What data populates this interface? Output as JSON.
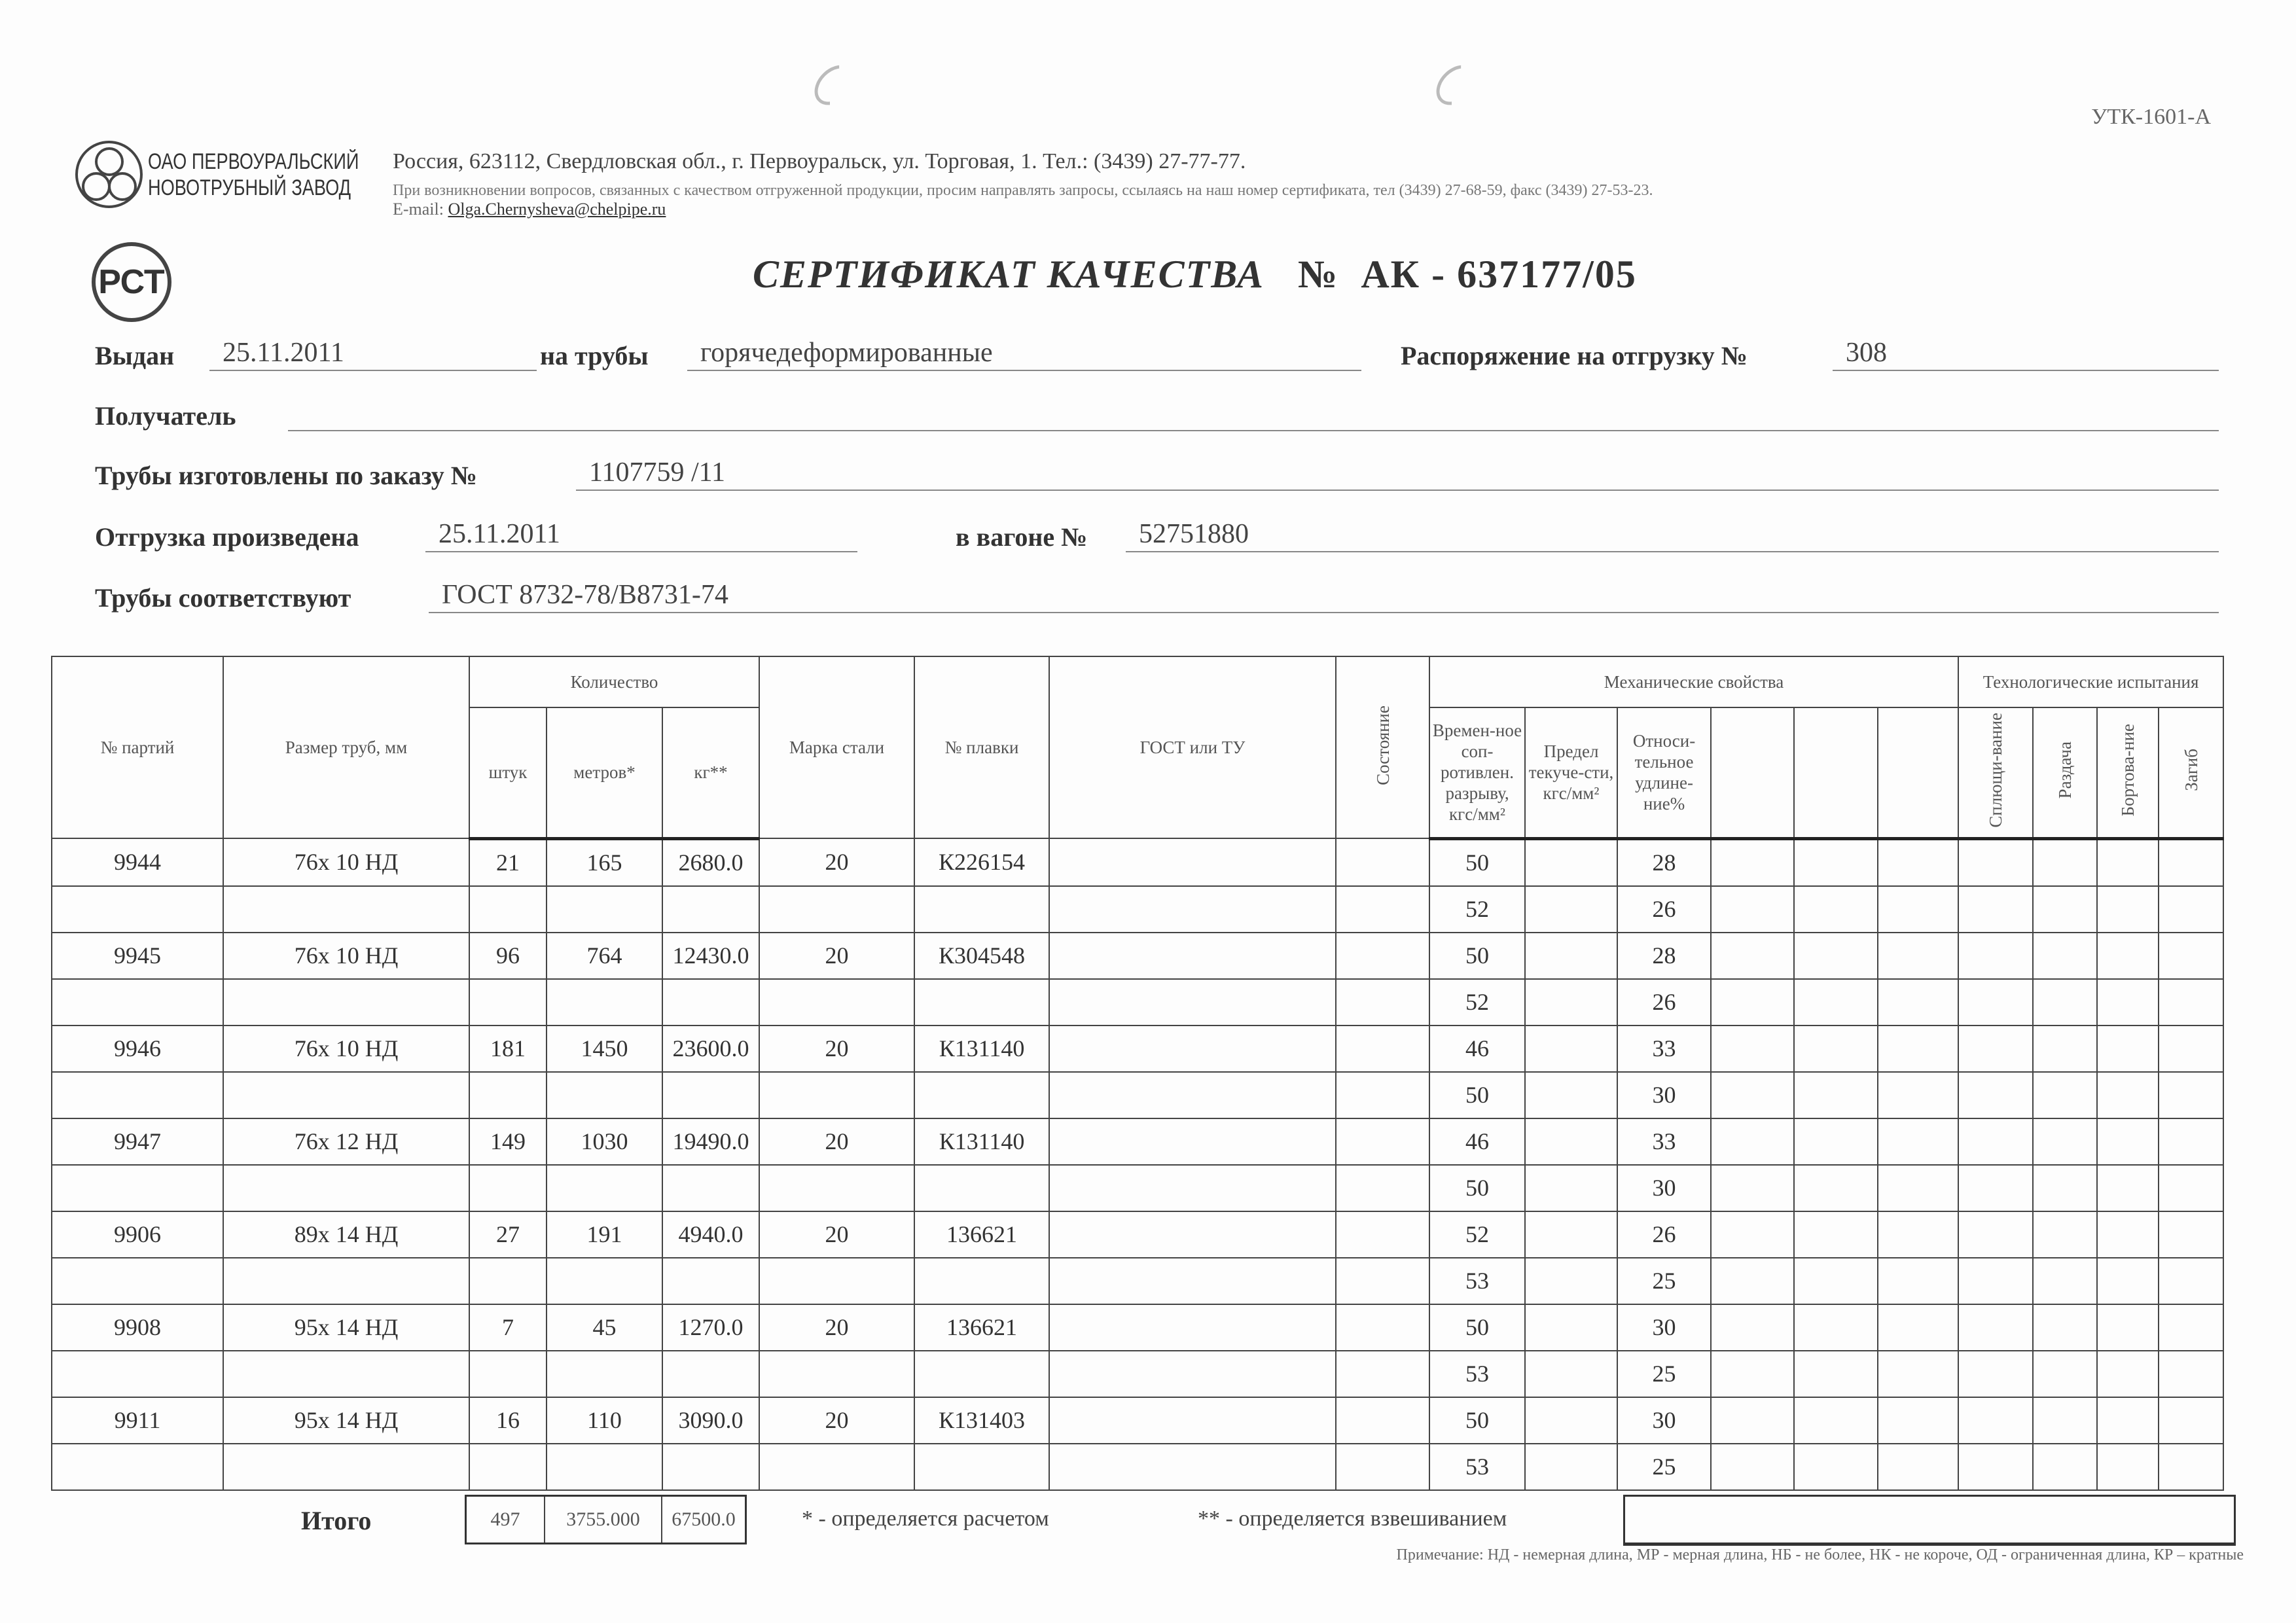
{
  "form_code": "УТК-1601-А",
  "company": {
    "name_line1": "ОАО ПЕРВОУРАЛЬСКИЙ",
    "name_line2": "НОВОТРУБНЫЙ ЗАВОД",
    "address": "Россия, 623112, Свердловская обл., г. Первоуральск, ул. Торговая, 1. Тел.: (3439) 27-77-77.",
    "inquiry": "При возникновении вопросов, связанных с качеством отгруженной продукции, просим направлять запросы, ссылаясь на наш номер сертификата, тел (3439) 27-68-59, факс (3439) 27-53-23.",
    "email_label": "E-mail:",
    "email": "Olga.Chernysheva@chelpipe.ru",
    "rst_logo": "РСТ"
  },
  "certificate": {
    "title": "СЕРТИФИКАТ КАЧЕСТВА",
    "number_sign": "№",
    "number": "АК - 637177/05"
  },
  "fields": {
    "issued_label": "Выдан",
    "issued": "25.11.2011",
    "pipes_label": "на трубы",
    "pipes": "горячедеформированные",
    "order_label": "Распоряжение на отгрузку №",
    "order": "308",
    "recipient_label": "Получатель",
    "recipient": "",
    "made_label": "Трубы изготовлены по заказу №",
    "made": "1107759   /11",
    "shipped_label": "Отгрузка произведена",
    "shipped": "25.11.2011",
    "wagon_label": "в вагоне №",
    "wagon": "52751880",
    "conform_label": "Трубы соответствуют",
    "conform": "ГОСТ 8732-78/В8731-74"
  },
  "table": {
    "headers": {
      "batch": "№ партий",
      "size": "Размер труб, мм",
      "quantity": "Количество",
      "pcs": "штук",
      "meters": "метров*",
      "kg": "кг**",
      "steel": "Марка стали",
      "heat": "№ плавки",
      "gost": "ГОСТ или ТУ",
      "state": "Состояние",
      "mech": "Механические свойства",
      "tensile": "Времен-ное соп-ротивлен. разрыву, кгс/мм²",
      "yield": "Предел текуче-сти, кгс/мм²",
      "elong": "Относи-тельное удлине-ние%",
      "tech": "Технологические испытания",
      "flatten": "Сплющи-вание",
      "expand": "Раздача",
      "flange": "Бортова-ние",
      "bend": "Загиб"
    },
    "rows": [
      {
        "batch": "9944",
        "size": "76х 10 НД",
        "pcs": "21",
        "meters": "165",
        "kg": "2680.0",
        "steel": "20",
        "heat": "К226154",
        "tensile": "50",
        "elong": "28"
      },
      {
        "batch": "",
        "size": "",
        "pcs": "",
        "meters": "",
        "kg": "",
        "steel": "",
        "heat": "",
        "tensile": "52",
        "elong": "26"
      },
      {
        "batch": "9945",
        "size": "76х 10 НД",
        "pcs": "96",
        "meters": "764",
        "kg": "12430.0",
        "steel": "20",
        "heat": "К304548",
        "tensile": "50",
        "elong": "28"
      },
      {
        "batch": "",
        "size": "",
        "pcs": "",
        "meters": "",
        "kg": "",
        "steel": "",
        "heat": "",
        "tensile": "52",
        "elong": "26"
      },
      {
        "batch": "9946",
        "size": "76х 10 НД",
        "pcs": "181",
        "meters": "1450",
        "kg": "23600.0",
        "steel": "20",
        "heat": "К131140",
        "tensile": "46",
        "elong": "33"
      },
      {
        "batch": "",
        "size": "",
        "pcs": "",
        "meters": "",
        "kg": "",
        "steel": "",
        "heat": "",
        "tensile": "50",
        "elong": "30"
      },
      {
        "batch": "9947",
        "size": "76х 12 НД",
        "pcs": "149",
        "meters": "1030",
        "kg": "19490.0",
        "steel": "20",
        "heat": "К131140",
        "tensile": "46",
        "elong": "33"
      },
      {
        "batch": "",
        "size": "",
        "pcs": "",
        "meters": "",
        "kg": "",
        "steel": "",
        "heat": "",
        "tensile": "50",
        "elong": "30"
      },
      {
        "batch": "9906",
        "size": "89х 14 НД",
        "pcs": "27",
        "meters": "191",
        "kg": "4940.0",
        "steel": "20",
        "heat": "136621",
        "tensile": "52",
        "elong": "26"
      },
      {
        "batch": "",
        "size": "",
        "pcs": "",
        "meters": "",
        "kg": "",
        "steel": "",
        "heat": "",
        "tensile": "53",
        "elong": "25"
      },
      {
        "batch": "9908",
        "size": "95х 14 НД",
        "pcs": "7",
        "meters": "45",
        "kg": "1270.0",
        "steel": "20",
        "heat": "136621",
        "tensile": "50",
        "elong": "30"
      },
      {
        "batch": "",
        "size": "",
        "pcs": "",
        "meters": "",
        "kg": "",
        "steel": "",
        "heat": "",
        "tensile": "53",
        "elong": "25"
      },
      {
        "batch": "9911",
        "size": "95х 14 НД",
        "pcs": "16",
        "meters": "110",
        "kg": "3090.0",
        "steel": "20",
        "heat": "К131403",
        "tensile": "50",
        "elong": "30"
      },
      {
        "batch": "",
        "size": "",
        "pcs": "",
        "meters": "",
        "kg": "",
        "steel": "",
        "heat": "",
        "tensile": "53",
        "elong": "25"
      }
    ],
    "totals": {
      "label": "Итого",
      "pcs": "497",
      "meters": "3755.000",
      "kg": "67500.0"
    }
  },
  "footnotes": {
    "calc": "* - определяется расчетом",
    "weigh": "** - определяется взвешиванием",
    "note": "Примечание: НД - немерная длина, МР - мерная длина, НБ - не более, НК - не короче, ОД - ограниченная длина, КР – кратные"
  }
}
